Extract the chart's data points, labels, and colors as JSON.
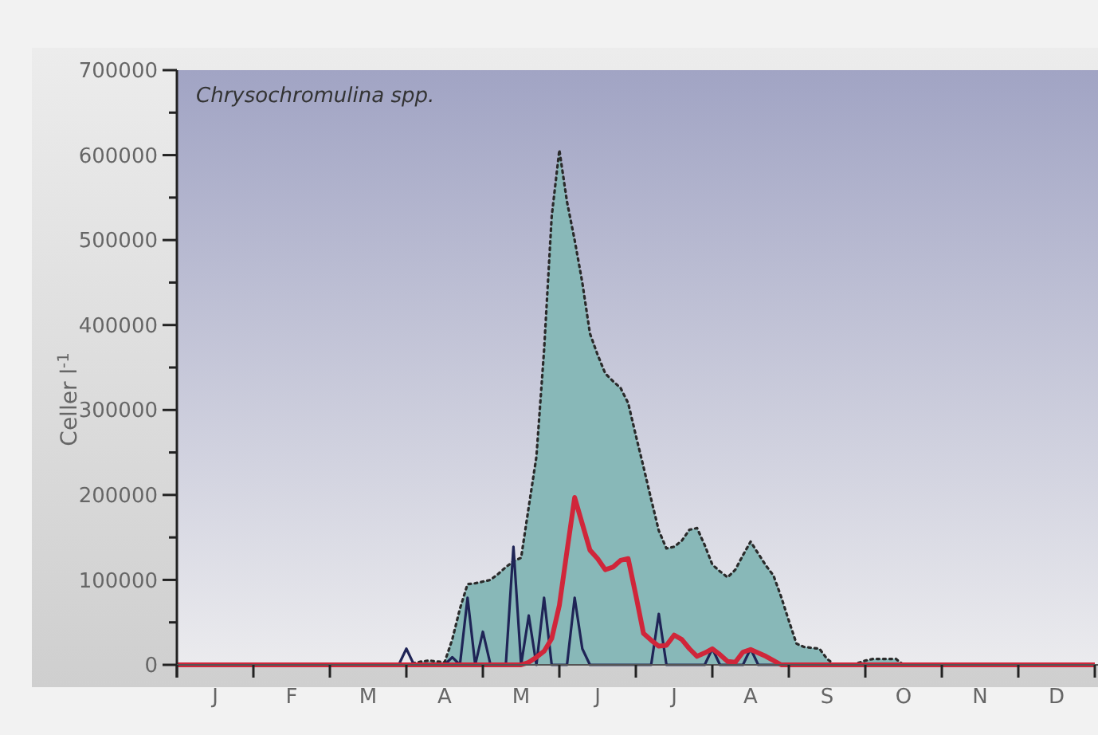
{
  "chart_data": {
    "type": "line",
    "title": "Chrysochromulina spp.",
    "ylabel": "Celler l$^{-1}$",
    "ylim": [
      0,
      700000
    ],
    "categories": [
      null,
      null,
      null,
      null,
      null,
      "J",
      null,
      null,
      null,
      null,
      null,
      null,
      null,
      null,
      null,
      "F",
      null,
      null,
      null,
      null,
      null,
      null,
      null,
      null,
      null,
      "M",
      null,
      null,
      null,
      null,
      null,
      null,
      null,
      null,
      null,
      "A",
      null,
      null,
      null,
      null,
      null,
      null,
      null,
      null,
      null,
      "M",
      null,
      null,
      null,
      null,
      null,
      null,
      null,
      null,
      null,
      "J",
      null,
      null,
      null,
      null,
      null,
      null,
      null,
      null,
      null,
      "J",
      null,
      null,
      null,
      null,
      null,
      null,
      null,
      null,
      null,
      "A",
      null,
      null,
      null,
      null,
      null,
      null,
      null,
      null,
      null,
      "S",
      null,
      null,
      null,
      null,
      null,
      null,
      null,
      null,
      null,
      "O",
      null,
      null,
      null,
      null,
      null,
      null,
      null,
      null,
      null,
      "N",
      null,
      null,
      null,
      null,
      null,
      null,
      null,
      null,
      null,
      "D",
      null,
      null,
      null,
      null,
      null
    ],
    "yticks": [
      0,
      {
        "value": 50000,
        "label": null
      },
      100000,
      {
        "value": 150000,
        "label": null
      },
      200000,
      {
        "value": 250000,
        "label": null
      },
      300000,
      {
        "value": 350000,
        "label": null
      },
      400000,
      {
        "value": 450000,
        "label": null
      },
      500000,
      {
        "value": 550000,
        "label": null
      },
      600000,
      {
        "value": 650000,
        "label": null
      },
      700000
    ],
    "series": [
      {
        "type": "area",
        "color": "#88b8b8",
        "line_style": "dotted",
        "values": [
          0,
          0,
          0,
          0,
          0,
          0,
          0,
          0,
          0,
          0,
          0,
          0,
          0,
          0,
          0,
          0,
          0,
          0,
          0,
          0,
          0,
          0,
          0,
          0,
          0,
          0,
          0,
          0,
          0,
          0,
          0,
          2000,
          4000,
          5000,
          4000,
          3000,
          30000,
          66000,
          95000,
          96000,
          98000,
          100000,
          107000,
          115000,
          122000,
          126000,
          186000,
          245000,
          370000,
          528000,
          606000,
          545000,
          500000,
          450000,
          390000,
          365000,
          343000,
          334000,
          326000,
          308000,
          270000,
          233000,
          195000,
          158000,
          137000,
          139000,
          146000,
          159000,
          161000,
          141000,
          118000,
          110000,
          103000,
          112000,
          129000,
          145000,
          131000,
          117000,
          105000,
          80000,
          52000,
          25000,
          21000,
          20000,
          19000,
          7000,
          0,
          0,
          0,
          2000,
          5000,
          7000,
          7000,
          7000,
          7000,
          0,
          0,
          0,
          0,
          0,
          0,
          0,
          0,
          0,
          0,
          0,
          0,
          0,
          0,
          0,
          0,
          0,
          0,
          0,
          0,
          0,
          0,
          0,
          0,
          0,
          0
        ]
      },
      {
        "color": "#1f2456",
        "line_style": "solid",
        "values": [
          0,
          0,
          0,
          0,
          0,
          0,
          0,
          0,
          0,
          0,
          0,
          0,
          0,
          0,
          0,
          0,
          0,
          0,
          0,
          0,
          0,
          0,
          0,
          0,
          0,
          0,
          0,
          0,
          0,
          0,
          19000,
          0,
          0,
          0,
          0,
          0,
          9000,
          0,
          79000,
          0,
          39000,
          0,
          0,
          0,
          139000,
          0,
          58000,
          0,
          79000,
          0,
          0,
          0,
          79000,
          19000,
          0,
          0,
          0,
          0,
          0,
          0,
          0,
          0,
          0,
          60000,
          0,
          0,
          0,
          0,
          0,
          0,
          19000,
          0,
          0,
          0,
          0,
          19000,
          0,
          0,
          0,
          0,
          0,
          0,
          0,
          0,
          0,
          0,
          0,
          0,
          0,
          0,
          0,
          0,
          0,
          0,
          0,
          0,
          0,
          0,
          0,
          0,
          0,
          0,
          0,
          0,
          0,
          0,
          0,
          0,
          0,
          0,
          0,
          0,
          0,
          0,
          0,
          0,
          0,
          0,
          0,
          0,
          0
        ]
      },
      {
        "color": "#d0263a",
        "line_style": "solid",
        "values": [
          0,
          0,
          0,
          0,
          0,
          0,
          0,
          0,
          0,
          0,
          0,
          0,
          0,
          0,
          0,
          0,
          0,
          0,
          0,
          0,
          0,
          0,
          0,
          0,
          0,
          0,
          0,
          0,
          0,
          0,
          0,
          0,
          0,
          0,
          0,
          0,
          0,
          0,
          0,
          0,
          0,
          0,
          0,
          0,
          0,
          0,
          3000,
          9000,
          16000,
          31000,
          70000,
          134000,
          197000,
          166000,
          135000,
          125000,
          112000,
          115000,
          123000,
          125000,
          82000,
          37000,
          29000,
          22000,
          23000,
          35000,
          30000,
          19000,
          10000,
          14000,
          19000,
          12000,
          4000,
          3000,
          15000,
          18000,
          14000,
          10000,
          5000,
          0,
          0,
          0,
          0,
          0,
          0,
          0,
          0,
          0,
          0,
          0,
          0,
          0,
          0,
          0,
          0,
          0,
          0,
          0,
          0,
          0,
          0,
          0,
          0,
          0,
          0,
          0,
          0,
          0,
          0,
          0,
          0,
          0,
          0,
          0,
          0,
          0,
          0,
          0,
          0,
          0,
          0
        ]
      }
    ]
  }
}
